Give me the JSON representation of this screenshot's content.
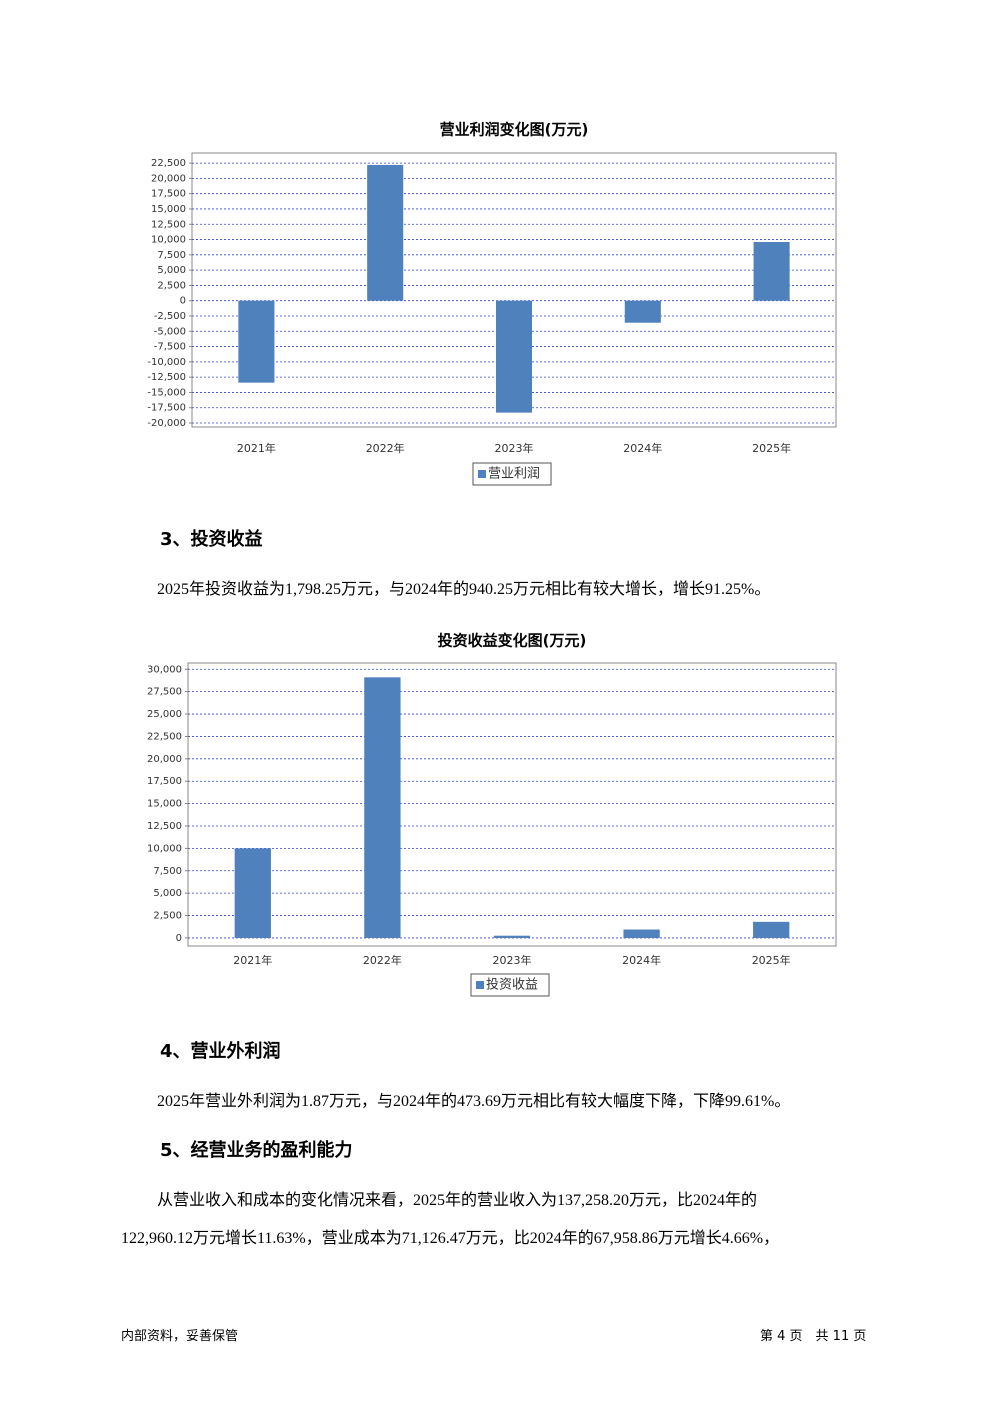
{
  "chart_data": [
    {
      "type": "bar",
      "title": "营业利润变化图(万元)",
      "categories": [
        "2021年",
        "2022年",
        "2023年",
        "2024年",
        "2025年"
      ],
      "series": [
        {
          "name": "营业利润",
          "color": "#4f81bd",
          "values": [
            -13400,
            22200,
            -18300,
            -3600,
            9600
          ]
        }
      ],
      "ylim": [
        -20650,
        24150
      ],
      "yticks": [
        {
          "value": -20000,
          "label": "-20,000"
        },
        {
          "value": -17500,
          "label": "-17,500"
        },
        {
          "value": -15000,
          "label": "-15,000"
        },
        {
          "value": -12500,
          "label": "-12,500"
        },
        {
          "value": -10000,
          "label": "-10,000"
        },
        {
          "value": -7500,
          "label": "-7,500"
        },
        {
          "value": -5000,
          "label": "-5,000"
        },
        {
          "value": -2500,
          "label": "-2,500"
        },
        0,
        {
          "value": 2500,
          "label": "2,500"
        },
        {
          "value": 5000,
          "label": "5,000"
        },
        {
          "value": 7500,
          "label": "7,500"
        },
        {
          "value": 10000,
          "label": "10,000"
        },
        {
          "value": 12500,
          "label": "12,500"
        },
        {
          "value": 15000,
          "label": "15,000"
        },
        {
          "value": 17500,
          "label": "17,500"
        },
        {
          "value": 20000,
          "label": "20,000"
        },
        {
          "value": 22500,
          "label": "22,500"
        }
      ],
      "grid": true,
      "legend": "bottom"
    },
    {
      "type": "bar",
      "title": "投资收益变化图(万元)",
      "categories": [
        "2021年",
        "2022年",
        "2023年",
        "2024年",
        "2025年"
      ],
      "series": [
        {
          "name": "投资收益",
          "color": "#4f81bd",
          "values": [
            10000,
            29100,
            250,
            940.25,
            1798.25
          ]
        }
      ],
      "ylim": [
        -900,
        30700
      ],
      "yticks": [
        0,
        {
          "value": 2500,
          "label": "2,500"
        },
        {
          "value": 5000,
          "label": "5,000"
        },
        {
          "value": 7500,
          "label": "7,500"
        },
        {
          "value": 10000,
          "label": "10,000"
        },
        {
          "value": 12500,
          "label": "12,500"
        },
        {
          "value": 15000,
          "label": "15,000"
        },
        {
          "value": 17500,
          "label": "17,500"
        },
        {
          "value": 20000,
          "label": "20,000"
        },
        {
          "value": 22500,
          "label": "22,500"
        },
        {
          "value": 25000,
          "label": "25,000"
        },
        {
          "value": 27500,
          "label": "27,500"
        },
        {
          "value": 30000,
          "label": "30,000"
        }
      ],
      "grid": true,
      "legend": "bottom"
    }
  ],
  "sections": [
    {
      "heading": "3、投资收益",
      "lines": [
        "2025年投资收益为1,798.25万元，与2024年的940.25万元相比有较大增长，增长91.25%。"
      ]
    },
    {
      "heading": "4、营业外利润",
      "lines": [
        "2025年营业外利润为1.87万元，与2024年的473.69万元相比有较大幅度下降，下降99.61%。"
      ]
    },
    {
      "heading": "5、经营业务的盈利能力",
      "lines": [
        "从营业收入和成本的变化情况来看，2025年的营业收入为137,258.20万元，比2024年的",
        "122,960.12万元增长11.63%，营业成本为71,126.47万元，比2024年的67,958.86万元增长4.66%，"
      ]
    }
  ],
  "page_footer": {
    "left": "内部资料，妥善保管",
    "right": "第 4 页　共 11 页"
  }
}
